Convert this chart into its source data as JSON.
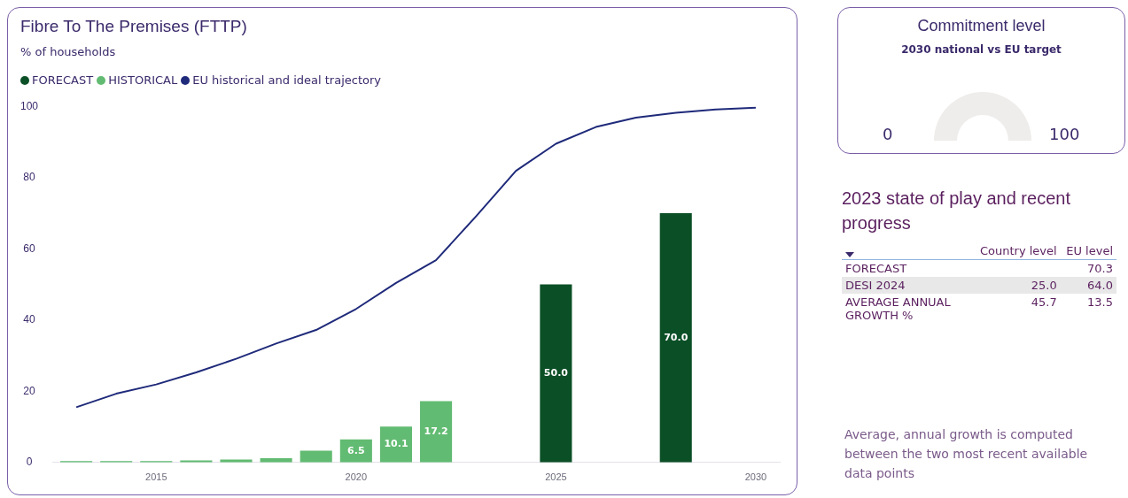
{
  "chart_data": [
    {
      "type": "bar",
      "title": "Fibre To The Premises (FTTP)",
      "subtitle": "% of households",
      "legend": "top left",
      "xlim": [
        2012.4,
        2030.6
      ],
      "xticks": [
        2015,
        2020,
        2025,
        2030
      ],
      "ylim": [
        0,
        100
      ],
      "yticks": [
        0,
        20,
        40,
        60,
        80,
        100
      ],
      "series": [
        {
          "name": "FORECAST",
          "type": "bar",
          "color": "#0b4f26",
          "x": [
            2025,
            2028
          ],
          "values": [
            50.0,
            70.0
          ],
          "value_labels": [
            "50.0",
            "70.0"
          ]
        },
        {
          "name": "HISTORICAL",
          "type": "bar",
          "color": "#62bb72",
          "x": [
            2013,
            2014,
            2015,
            2016,
            2017,
            2018,
            2019,
            2020,
            2021,
            2022
          ],
          "values": [
            0.4,
            0.4,
            0.4,
            0.6,
            0.8,
            1.2,
            3.3,
            6.5,
            10.1,
            17.2
          ],
          "value_labels": [
            null,
            null,
            null,
            null,
            null,
            null,
            null,
            "6.5",
            "10.1",
            "17.2"
          ]
        },
        {
          "name": "EU historical and ideal trajectory",
          "type": "line",
          "color": "#1f2a7a",
          "x": [
            2013,
            2014,
            2015,
            2016,
            2017,
            2018,
            2019,
            2020,
            2021,
            2022,
            2023,
            2024,
            2025,
            2026,
            2027,
            2028,
            2029,
            2030
          ],
          "values": [
            15.5,
            19.3,
            21.9,
            25.3,
            29.1,
            33.4,
            37.2,
            43.1,
            50.4,
            56.8,
            69.1,
            81.9,
            89.5,
            94.2,
            96.8,
            98.2,
            99.1,
            99.6
          ]
        }
      ]
    },
    {
      "type": "other",
      "title": "Commitment level",
      "subtitle": "2030 national vs EU target",
      "annotations": [
        "0",
        "100"
      ]
    },
    {
      "type": "other",
      "title": "2023 state of play and recent progress",
      "categories": [
        "FORECAST",
        "DESI 2024",
        "AVERAGE ANNUAL GROWTH %"
      ],
      "series": [
        {
          "name": "Country level",
          "values": [
            null,
            25.0,
            45.7
          ],
          "value_labels": [
            null,
            "25.0",
            "45.7"
          ]
        },
        {
          "name": "EU level",
          "values": [
            70.3,
            64.0,
            13.5
          ],
          "value_labels": [
            "70.3",
            "64.0",
            "13.5"
          ]
        }
      ],
      "annotations": [
        "Average, annual growth is computed between the two most recent available data points"
      ]
    }
  ]
}
